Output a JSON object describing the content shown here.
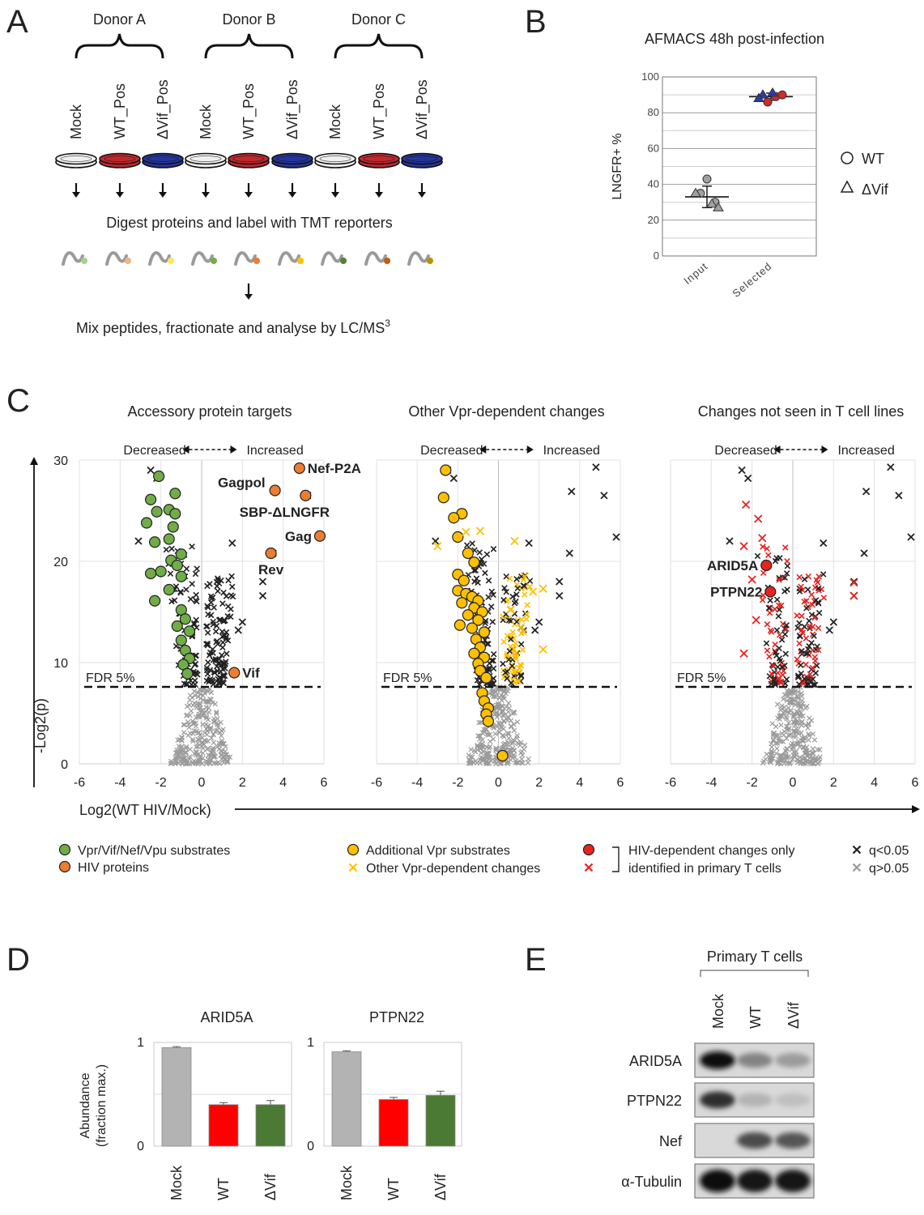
{
  "panels": {
    "a": "A",
    "b": "B",
    "c": "C",
    "d": "D",
    "e": "E"
  },
  "panel_a": {
    "donors": [
      "Donor A",
      "Donor B",
      "Donor C"
    ],
    "conditions": [
      "Mock",
      "WT_Pos",
      "ΔVif_Pos",
      "Mock",
      "WT_Pos",
      "ΔVif_Pos",
      "Mock",
      "WT_Pos",
      "ΔVif_Pos"
    ],
    "dish_colors": [
      "#f0f0f0",
      "#c0282e",
      "#24359a",
      "#f0f0f0",
      "#c0282e",
      "#24359a",
      "#f0f0f0",
      "#c0282e",
      "#24359a"
    ],
    "peptide_colors": [
      "#a8d08d",
      "#f4b084",
      "#ffe35b",
      "#70ad47",
      "#ed7d31",
      "#ffc000",
      "#538135",
      "#c55a11",
      "#bf8f00"
    ],
    "step1": "Digest proteins and label with TMT reporters",
    "step2_main": "Mix peptides, fractionate and analyse by LC/MS",
    "step2_sup": "3"
  },
  "chart_data": [
    {
      "id": "B",
      "type": "scatter",
      "title": "AFMACS 48h post-infection",
      "ylabel": "LNGFR+ %",
      "ylim": [
        0,
        100
      ],
      "yticks": [
        0,
        20,
        40,
        60,
        80,
        100
      ],
      "categories": [
        "Input",
        "Selected"
      ],
      "legend": [
        {
          "symbol": "circle",
          "label": "WT"
        },
        {
          "symbol": "triangle",
          "label": "ΔVif"
        }
      ],
      "points": [
        {
          "category": "Input",
          "value": 43,
          "shape": "circle",
          "color": "#a0a0a0"
        },
        {
          "category": "Input",
          "value": 35,
          "shape": "circle",
          "color": "#a0a0a0"
        },
        {
          "category": "Input",
          "value": 30,
          "shape": "circle",
          "color": "#a0a0a0"
        },
        {
          "category": "Input",
          "value": 35,
          "shape": "triangle",
          "color": "#a0a0a0"
        },
        {
          "category": "Input",
          "value": 29,
          "shape": "triangle",
          "color": "#a0a0a0"
        },
        {
          "category": "Input",
          "value": 27,
          "shape": "triangle",
          "color": "#a0a0a0"
        },
        {
          "category": "Selected",
          "value": 89,
          "shape": "circle",
          "color": "#d12a2a"
        },
        {
          "category": "Selected",
          "value": 86,
          "shape": "circle",
          "color": "#d12a2a"
        },
        {
          "category": "Selected",
          "value": 90,
          "shape": "circle",
          "color": "#d12a2a"
        },
        {
          "category": "Selected",
          "value": 90,
          "shape": "triangle",
          "color": "#2a3aa8"
        },
        {
          "category": "Selected",
          "value": 91,
          "shape": "triangle",
          "color": "#2a3aa8"
        },
        {
          "category": "Selected",
          "value": 88,
          "shape": "triangle",
          "color": "#2a3aa8"
        }
      ],
      "summary": [
        {
          "category": "Input",
          "mean": 33,
          "lower": 27,
          "upper": 39
        },
        {
          "category": "Selected",
          "mean": 89,
          "lower": 87,
          "upper": 91
        }
      ]
    },
    {
      "id": "C",
      "type": "scatter",
      "subtype": "volcano",
      "xlabel": "Log2(WT HIV/Mock)",
      "ylabel": "-Log2(p)",
      "xlim": [
        -6,
        6
      ],
      "ylim": [
        0,
        30
      ],
      "xticks": [
        -6,
        -4,
        -2,
        0,
        2,
        4,
        6
      ],
      "yticks": [
        0,
        10,
        20,
        30
      ],
      "fdr_line": {
        "y": 7.6,
        "label": "FDR 5%"
      },
      "direction": {
        "left": "Decreased",
        "right": "Increased"
      },
      "panels": [
        {
          "title": "Accessory protein targets",
          "highlight_color": "#70ad47",
          "highlight": [
            {
              "x": -2.1,
              "y": 28.4
            },
            {
              "x": -1.3,
              "y": 26.7
            },
            {
              "x": -2.5,
              "y": 26.1
            },
            {
              "x": -1.6,
              "y": 25.1
            },
            {
              "x": -2.2,
              "y": 24.9
            },
            {
              "x": -1.3,
              "y": 24.7
            },
            {
              "x": -2.7,
              "y": 23.8
            },
            {
              "x": -1.4,
              "y": 23.4
            },
            {
              "x": -1.6,
              "y": 22.2
            },
            {
              "x": -2.3,
              "y": 21.9
            },
            {
              "x": -1.0,
              "y": 20.7
            },
            {
              "x": -1.5,
              "y": 20.1
            },
            {
              "x": -1.2,
              "y": 19.6
            },
            {
              "x": -2.0,
              "y": 19.0
            },
            {
              "x": -2.5,
              "y": 18.8
            },
            {
              "x": -1.0,
              "y": 18.5
            },
            {
              "x": -1.6,
              "y": 17.2
            },
            {
              "x": -2.3,
              "y": 16.1
            },
            {
              "x": -1.0,
              "y": 15.2
            },
            {
              "x": -0.8,
              "y": 14.3
            },
            {
              "x": -1.2,
              "y": 13.6
            },
            {
              "x": -0.6,
              "y": 13.1
            },
            {
              "x": -1.0,
              "y": 12.2
            },
            {
              "x": -0.8,
              "y": 11.2
            },
            {
              "x": -0.6,
              "y": 10.4
            },
            {
              "x": -0.9,
              "y": 9.8
            },
            {
              "x": -0.7,
              "y": 8.9
            }
          ],
          "hiv_color": "#ed7d31",
          "hiv_proteins": [
            {
              "name": "Nef-P2A",
              "x": 4.8,
              "y": 29.2,
              "label_pos": "right"
            },
            {
              "name": "Gagpol",
              "x": 3.6,
              "y": 27.0,
              "label_pos": "left"
            },
            {
              "name": "SBP-ΔLNGFR",
              "x": 5.1,
              "y": 26.5,
              "label_pos": "below"
            },
            {
              "name": "Gag",
              "x": 5.8,
              "y": 22.5,
              "label_pos": "left"
            },
            {
              "name": "Rev",
              "x": 3.4,
              "y": 20.8,
              "label_pos": "below"
            },
            {
              "name": "Vif",
              "x": 1.6,
              "y": 9.0,
              "label_pos": "right"
            }
          ]
        },
        {
          "title": "Other Vpr-dependent changes",
          "highlight_color": "#ffc000",
          "highlight": [
            {
              "x": -2.6,
              "y": 29.0
            },
            {
              "x": -2.7,
              "y": 26.3
            },
            {
              "x": -1.8,
              "y": 24.7
            },
            {
              "x": -2.2,
              "y": 24.3
            },
            {
              "x": -2.0,
              "y": 22.4
            },
            {
              "x": -1.5,
              "y": 20.8
            },
            {
              "x": -1.2,
              "y": 19.9
            },
            {
              "x": -2.0,
              "y": 18.7
            },
            {
              "x": -1.7,
              "y": 18.1
            },
            {
              "x": -2.0,
              "y": 17.1
            },
            {
              "x": -1.6,
              "y": 16.8
            },
            {
              "x": -1.3,
              "y": 16.5
            },
            {
              "x": -1.0,
              "y": 16.1
            },
            {
              "x": -1.8,
              "y": 15.9
            },
            {
              "x": -1.2,
              "y": 15.4
            },
            {
              "x": -0.8,
              "y": 15.0
            },
            {
              "x": -1.5,
              "y": 14.7
            },
            {
              "x": -1.0,
              "y": 14.2
            },
            {
              "x": -1.9,
              "y": 13.7
            },
            {
              "x": -1.3,
              "y": 13.4
            },
            {
              "x": -0.7,
              "y": 13.0
            },
            {
              "x": -1.1,
              "y": 12.3
            },
            {
              "x": -0.9,
              "y": 11.5
            },
            {
              "x": -1.2,
              "y": 10.9
            },
            {
              "x": -0.7,
              "y": 10.5
            },
            {
              "x": -1.0,
              "y": 9.9
            },
            {
              "x": -0.9,
              "y": 9.2
            },
            {
              "x": -0.6,
              "y": 8.5
            },
            {
              "x": -0.8,
              "y": 7.0
            },
            {
              "x": -0.7,
              "y": 6.2
            },
            {
              "x": -0.5,
              "y": 5.5
            },
            {
              "x": -0.6,
              "y": 4.9
            },
            {
              "x": -0.5,
              "y": 4.2
            },
            {
              "x": 0.2,
              "y": 0.8
            }
          ],
          "other_changes_color": "#ffc000"
        },
        {
          "title": "Changes not seen in T cell lines",
          "highlight_color": "#e52420",
          "highlight_labels": [
            {
              "name": "ARID5A",
              "x": -1.3,
              "y": 19.6
            },
            {
              "name": "PTPN22",
              "x": -1.1,
              "y": 17.0
            }
          ],
          "extra_red_crosses": [
            {
              "x": -2.4,
              "y": 21.5
            },
            {
              "x": -1.7,
              "y": 24.2
            },
            {
              "x": -1.5,
              "y": 22.3
            },
            {
              "x": -2.3,
              "y": 25.6
            },
            {
              "x": 3.0,
              "y": 17.9
            },
            {
              "x": 3.0,
              "y": 16.6
            },
            {
              "x": -2.0,
              "y": 18.2
            },
            {
              "x": -1.8,
              "y": 14.2
            },
            {
              "x": -2.4,
              "y": 10.9
            }
          ]
        }
      ],
      "shared_black_outliers": [
        {
          "x": 4.8,
          "y": 29.3
        },
        {
          "x": 3.6,
          "y": 26.9
        },
        {
          "x": 5.2,
          "y": 26.5
        },
        {
          "x": 5.8,
          "y": 22.4
        },
        {
          "x": 3.5,
          "y": 20.8
        },
        {
          "x": 3.0,
          "y": 18.0
        },
        {
          "x": 3.0,
          "y": 16.6
        },
        {
          "x": 1.5,
          "y": 21.8
        },
        {
          "x": -2.5,
          "y": 29.0
        },
        {
          "x": -2.2,
          "y": 28.2
        },
        {
          "x": -3.1,
          "y": 22.0
        },
        {
          "x": 2.0,
          "y": 14.0
        },
        {
          "x": 1.8,
          "y": 13.2
        }
      ],
      "legend": [
        {
          "symbol": "circle",
          "color": "#70ad47",
          "label": "Vpr/Vif/Nef/Vpu substrates"
        },
        {
          "symbol": "circle",
          "color": "#ed7d31",
          "label": "HIV proteins"
        },
        {
          "symbol": "circle",
          "color": "#ffc000",
          "label": "Additional Vpr substrates"
        },
        {
          "symbol": "cross",
          "color": "#ffc000",
          "label": "Other Vpr-dependent changes"
        },
        {
          "symbol": "circle",
          "color": "#e52420",
          "label": "HIV-dependent changes only"
        },
        {
          "symbol": "cross",
          "color": "#e52420",
          "label": "identified in primary T cells"
        },
        {
          "symbol": "cross",
          "color": "#222222",
          "label": "q<0.05"
        },
        {
          "symbol": "cross",
          "color": "#999999",
          "label": "q>0.05"
        }
      ]
    },
    {
      "id": "D",
      "type": "bar",
      "ylabel": "Abundance (fraction max.)",
      "ylabel_lines": [
        "Abundance",
        "(fraction max.)"
      ],
      "ylim": [
        0,
        1
      ],
      "yticks": [
        0,
        1
      ],
      "categories": [
        "Mock",
        "WT",
        "ΔVif"
      ],
      "colors": [
        "#b3b3b3",
        "#ff0000",
        "#4a7a33"
      ],
      "subplots": [
        {
          "title": "ARID5A",
          "values": [
            0.95,
            0.4,
            0.4
          ],
          "errors": [
            0.01,
            0.02,
            0.04
          ]
        },
        {
          "title": "PTPN22",
          "values": [
            0.91,
            0.45,
            0.49
          ],
          "errors": [
            0.01,
            0.02,
            0.04
          ]
        }
      ]
    }
  ],
  "panel_e": {
    "title": "Primary T cells",
    "lanes": [
      "Mock",
      "WT",
      "ΔVif"
    ],
    "blots": [
      {
        "label": "ARID5A",
        "intensity": [
          1.0,
          0.42,
          0.3
        ]
      },
      {
        "label": "PTPN22",
        "intensity": [
          0.85,
          0.18,
          0.12
        ]
      },
      {
        "label": "Nef",
        "intensity": [
          0.0,
          0.7,
          0.65
        ]
      },
      {
        "label": "α-Tubulin",
        "intensity": [
          1.0,
          0.95,
          0.95
        ]
      }
    ]
  }
}
